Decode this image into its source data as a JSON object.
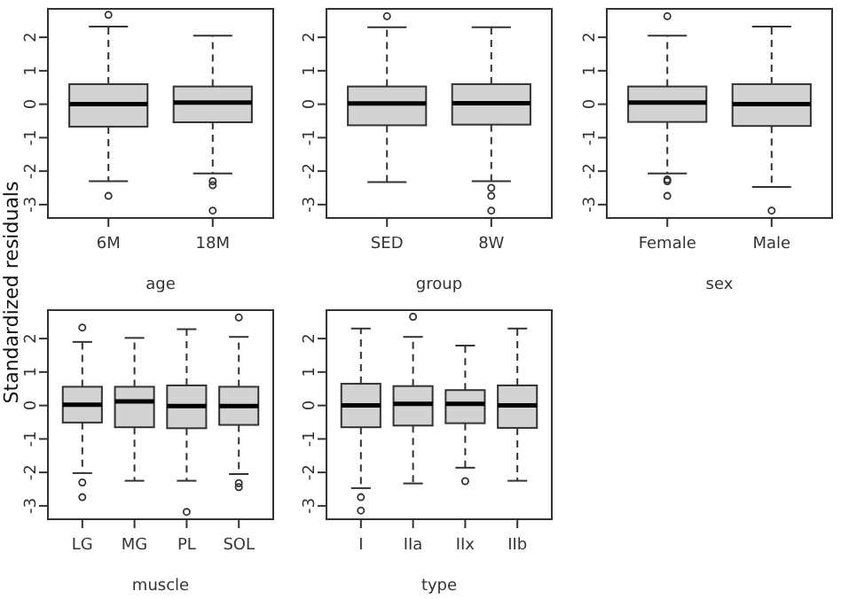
{
  "chart_data": [
    {
      "type": "box",
      "ylabel": "Standardized residuals",
      "xlabel": "age",
      "categories": [
        "6M",
        "18M"
      ],
      "ylim": [
        -3.4,
        2.85
      ],
      "yticks": [
        -3,
        -2,
        -1,
        0,
        1,
        2
      ],
      "color": "#d3d3d3",
      "boxes": [
        {
          "low": -2.3,
          "q1": -0.67,
          "median": 0,
          "q3": 0.6,
          "high": 2.32,
          "outliers": [
            2.67,
            -2.74
          ]
        },
        {
          "low": -2.07,
          "q1": -0.54,
          "median": 0.05,
          "q3": 0.53,
          "high": 2.05,
          "outliers": [
            -2.3,
            -2.42,
            -3.18
          ]
        }
      ]
    },
    {
      "type": "box",
      "xlabel": "group",
      "categories": [
        "SED",
        "8W"
      ],
      "ylim": [
        -3.4,
        2.85
      ],
      "yticks": [
        -3,
        -2,
        -1,
        0,
        1,
        2
      ],
      "color": "#d3d3d3",
      "boxes": [
        {
          "low": -2.33,
          "q1": -0.63,
          "median": 0.02,
          "q3": 0.53,
          "high": 2.3,
          "outliers": [
            2.63
          ]
        },
        {
          "low": -2.3,
          "q1": -0.61,
          "median": 0.03,
          "q3": 0.6,
          "high": 2.3,
          "outliers": [
            -2.5,
            -2.74,
            -3.18
          ]
        }
      ]
    },
    {
      "type": "box",
      "xlabel": "sex",
      "categories": [
        "Female",
        "Male"
      ],
      "ylim": [
        -3.4,
        2.85
      ],
      "yticks": [
        -3,
        -2,
        -1,
        0,
        1,
        2
      ],
      "color": "#d3d3d3",
      "boxes": [
        {
          "low": -2.07,
          "q1": -0.53,
          "median": 0.05,
          "q3": 0.53,
          "high": 2.05,
          "outliers": [
            2.63,
            -2.25,
            -2.3,
            -2.74
          ]
        },
        {
          "low": -2.47,
          "q1": -0.65,
          "median": 0,
          "q3": 0.6,
          "high": 2.32,
          "outliers": [
            -3.18
          ]
        }
      ]
    },
    {
      "type": "box",
      "xlabel": "muscle",
      "categories": [
        "LG",
        "MG",
        "PL",
        "SOL"
      ],
      "ylim": [
        -3.4,
        2.85
      ],
      "yticks": [
        -3,
        -2,
        -1,
        0,
        1,
        2
      ],
      "color": "#d3d3d3",
      "boxes": [
        {
          "low": -2.02,
          "q1": -0.51,
          "median": 0.02,
          "q3": 0.56,
          "high": 1.9,
          "outliers": [
            2.33,
            -2.3,
            -2.74
          ]
        },
        {
          "low": -2.25,
          "q1": -0.65,
          "median": 0.12,
          "q3": 0.56,
          "high": 2.02
        },
        {
          "low": -2.25,
          "q1": -0.68,
          "median": -0.02,
          "q3": 0.6,
          "high": 2.28,
          "outliers": [
            -3.18
          ]
        },
        {
          "low": -2.05,
          "q1": -0.58,
          "median": -0.02,
          "q3": 0.56,
          "high": 2.05,
          "outliers": [
            2.63,
            -2.32,
            -2.44
          ]
        }
      ]
    },
    {
      "type": "box",
      "xlabel": "type",
      "categories": [
        "I",
        "IIa",
        "IIx",
        "IIb"
      ],
      "ylim": [
        -3.4,
        2.85
      ],
      "yticks": [
        -3,
        -2,
        -1,
        0,
        1,
        2
      ],
      "color": "#d3d3d3",
      "boxes": [
        {
          "low": -2.47,
          "q1": -0.65,
          "median": 0,
          "q3": 0.65,
          "high": 2.3,
          "outliers": [
            -2.74,
            -3.14
          ]
        },
        {
          "low": -2.33,
          "q1": -0.6,
          "median": 0.05,
          "q3": 0.58,
          "high": 2.05,
          "outliers": [
            2.65
          ]
        },
        {
          "low": -1.86,
          "q1": -0.53,
          "median": 0.05,
          "q3": 0.46,
          "high": 1.79,
          "outliers": [
            -2.26
          ]
        },
        {
          "low": -2.25,
          "q1": -0.67,
          "median": 0,
          "q3": 0.6,
          "high": 2.3
        }
      ]
    }
  ]
}
